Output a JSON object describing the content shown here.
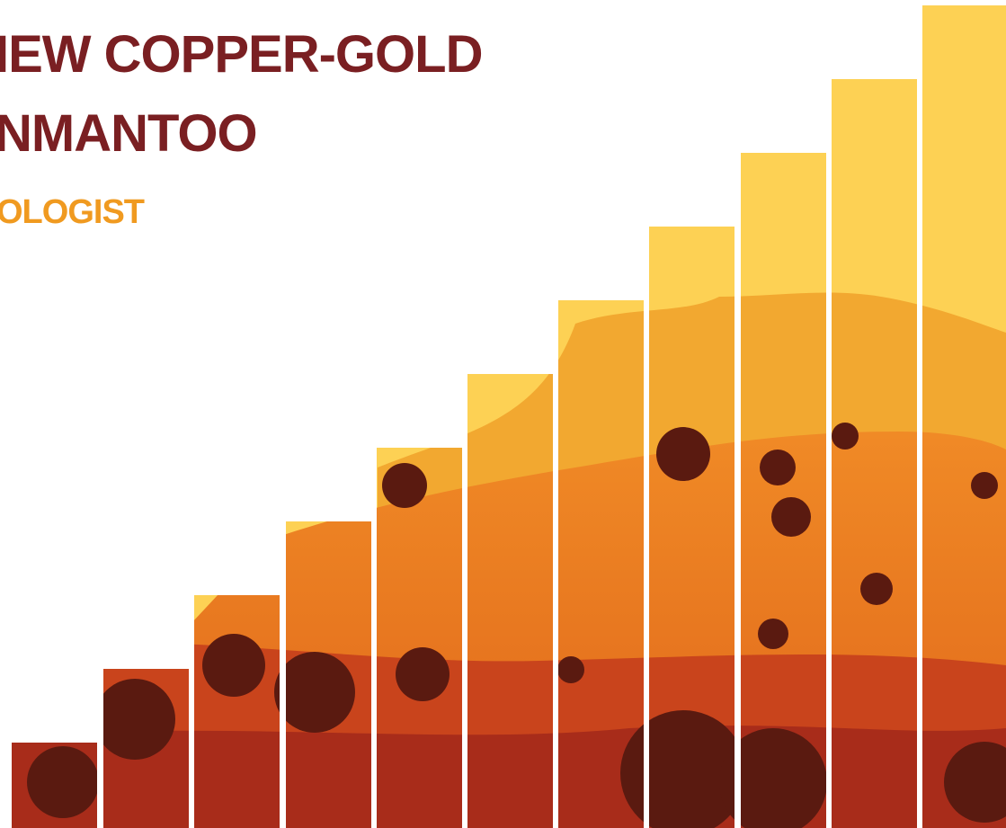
{
  "header": {
    "title_lines": [
      "IEW COPPER-GOLD",
      "NMANTOO"
    ],
    "subtitle": "OLOGIST"
  }
}
